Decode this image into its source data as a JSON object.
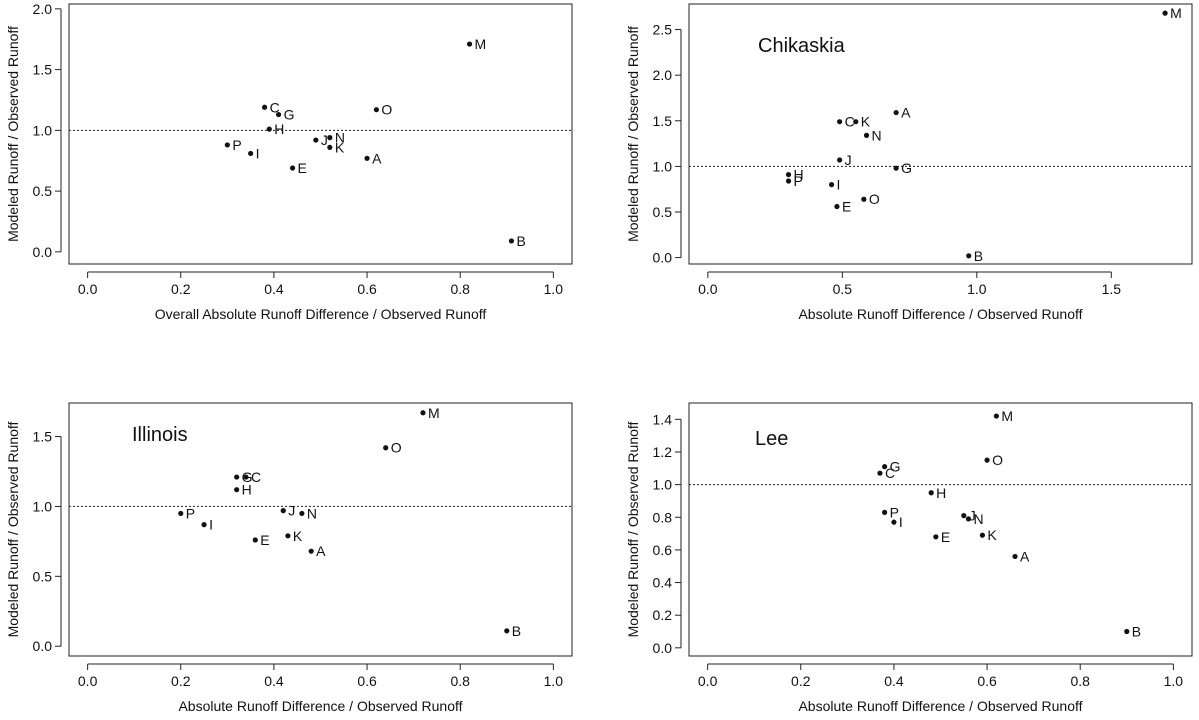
{
  "chart_data": [
    {
      "type": "scatter",
      "title": "",
      "xlabel": "Overall Absolute Runoff Difference / Observed Runoff",
      "ylabel": "Modeled Runoff / Observed Runoff",
      "xlim": [
        -0.04,
        1.04
      ],
      "ylim": [
        -0.1,
        2.04
      ],
      "xticks": [
        "0.0",
        "0.2",
        "0.4",
        "0.6",
        "0.8",
        "1.0"
      ],
      "yticks": [
        "0.0",
        "0.5",
        "1.0",
        "1.5",
        "2.0"
      ],
      "reference_line_y": 1.0,
      "points": [
        {
          "label": "M",
          "x": 0.82,
          "y": 1.71
        },
        {
          "label": "C",
          "x": 0.38,
          "y": 1.19
        },
        {
          "label": "G",
          "x": 0.41,
          "y": 1.13
        },
        {
          "label": "O",
          "x": 0.62,
          "y": 1.17
        },
        {
          "label": "H",
          "x": 0.39,
          "y": 1.01
        },
        {
          "label": "J",
          "x": 0.49,
          "y": 0.92
        },
        {
          "label": "N",
          "x": 0.52,
          "y": 0.94
        },
        {
          "label": "K",
          "x": 0.52,
          "y": 0.86
        },
        {
          "label": "P",
          "x": 0.3,
          "y": 0.88
        },
        {
          "label": "I",
          "x": 0.35,
          "y": 0.81
        },
        {
          "label": "A",
          "x": 0.6,
          "y": 0.77
        },
        {
          "label": "E",
          "x": 0.44,
          "y": 0.69
        },
        {
          "label": "B",
          "x": 0.91,
          "y": 0.09
        }
      ]
    },
    {
      "type": "scatter",
      "title": "Chikaskia",
      "xlabel": "Absolute Runoff Difference / Observed Runoff",
      "ylabel": "Modeled Runoff / Observed Runoff",
      "xlim": [
        -0.07,
        1.8
      ],
      "ylim": [
        -0.07,
        2.78
      ],
      "xticks": [
        "0.0",
        "0.5",
        "1.0",
        "1.5"
      ],
      "yticks": [
        "0.0",
        "0.5",
        "1.0",
        "1.5",
        "2.0",
        "2.5"
      ],
      "reference_line_y": 1.0,
      "points": [
        {
          "label": "M",
          "x": 1.7,
          "y": 2.68
        },
        {
          "label": "A",
          "x": 0.7,
          "y": 1.59
        },
        {
          "label": "C",
          "x": 0.49,
          "y": 1.49
        },
        {
          "label": "K",
          "x": 0.55,
          "y": 1.49
        },
        {
          "label": "N",
          "x": 0.59,
          "y": 1.34
        },
        {
          "label": "J",
          "x": 0.49,
          "y": 1.07
        },
        {
          "label": "G",
          "x": 0.7,
          "y": 0.98
        },
        {
          "label": "H",
          "x": 0.3,
          "y": 0.91
        },
        {
          "label": "P",
          "x": 0.3,
          "y": 0.84
        },
        {
          "label": "I",
          "x": 0.46,
          "y": 0.8
        },
        {
          "label": "O",
          "x": 0.58,
          "y": 0.64
        },
        {
          "label": "E",
          "x": 0.48,
          "y": 0.56
        },
        {
          "label": "B",
          "x": 0.97,
          "y": 0.02
        }
      ]
    },
    {
      "type": "scatter",
      "title": "Illinois",
      "xlabel": "Absolute Runoff Difference / Observed Runoff",
      "ylabel": "Modeled Runoff / Observed Runoff",
      "xlim": [
        -0.04,
        1.04
      ],
      "ylim": [
        -0.07,
        1.74
      ],
      "xticks": [
        "0.0",
        "0.2",
        "0.4",
        "0.6",
        "0.8",
        "1.0"
      ],
      "yticks": [
        "0.0",
        "0.5",
        "1.0",
        "1.5"
      ],
      "reference_line_y": 1.0,
      "points": [
        {
          "label": "M",
          "x": 0.72,
          "y": 1.67
        },
        {
          "label": "O",
          "x": 0.64,
          "y": 1.42
        },
        {
          "label": "G",
          "x": 0.32,
          "y": 1.21
        },
        {
          "label": "C",
          "x": 0.34,
          "y": 1.21
        },
        {
          "label": "H",
          "x": 0.32,
          "y": 1.12
        },
        {
          "label": "J",
          "x": 0.42,
          "y": 0.97
        },
        {
          "label": "N",
          "x": 0.46,
          "y": 0.95
        },
        {
          "label": "P",
          "x": 0.2,
          "y": 0.95
        },
        {
          "label": "I",
          "x": 0.25,
          "y": 0.87
        },
        {
          "label": "K",
          "x": 0.43,
          "y": 0.79
        },
        {
          "label": "E",
          "x": 0.36,
          "y": 0.76
        },
        {
          "label": "A",
          "x": 0.48,
          "y": 0.68
        },
        {
          "label": "B",
          "x": 0.9,
          "y": 0.11
        }
      ]
    },
    {
      "type": "scatter",
      "title": "Lee",
      "xlabel": "Absolute Runoff Difference / Observed Runoff",
      "ylabel": "Modeled Runoff / Observed Runoff",
      "xlim": [
        -0.04,
        1.04
      ],
      "ylim": [
        -0.05,
        1.5
      ],
      "xticks": [
        "0.0",
        "0.2",
        "0.4",
        "0.6",
        "0.8",
        "1.0"
      ],
      "yticks": [
        "0.0",
        "0.2",
        "0.4",
        "0.6",
        "0.8",
        "1.0",
        "1.2",
        "1.4"
      ],
      "reference_line_y": 1.0,
      "points": [
        {
          "label": "M",
          "x": 0.62,
          "y": 1.42
        },
        {
          "label": "O",
          "x": 0.6,
          "y": 1.15
        },
        {
          "label": "G",
          "x": 0.38,
          "y": 1.11
        },
        {
          "label": "C",
          "x": 0.37,
          "y": 1.07
        },
        {
          "label": "H",
          "x": 0.48,
          "y": 0.95
        },
        {
          "label": "J",
          "x": 0.55,
          "y": 0.81
        },
        {
          "label": "N",
          "x": 0.56,
          "y": 0.79
        },
        {
          "label": "P",
          "x": 0.38,
          "y": 0.83
        },
        {
          "label": "I",
          "x": 0.4,
          "y": 0.77
        },
        {
          "label": "K",
          "x": 0.59,
          "y": 0.69
        },
        {
          "label": "E",
          "x": 0.49,
          "y": 0.68
        },
        {
          "label": "A",
          "x": 0.66,
          "y": 0.56
        },
        {
          "label": "B",
          "x": 0.9,
          "y": 0.1
        }
      ]
    }
  ]
}
